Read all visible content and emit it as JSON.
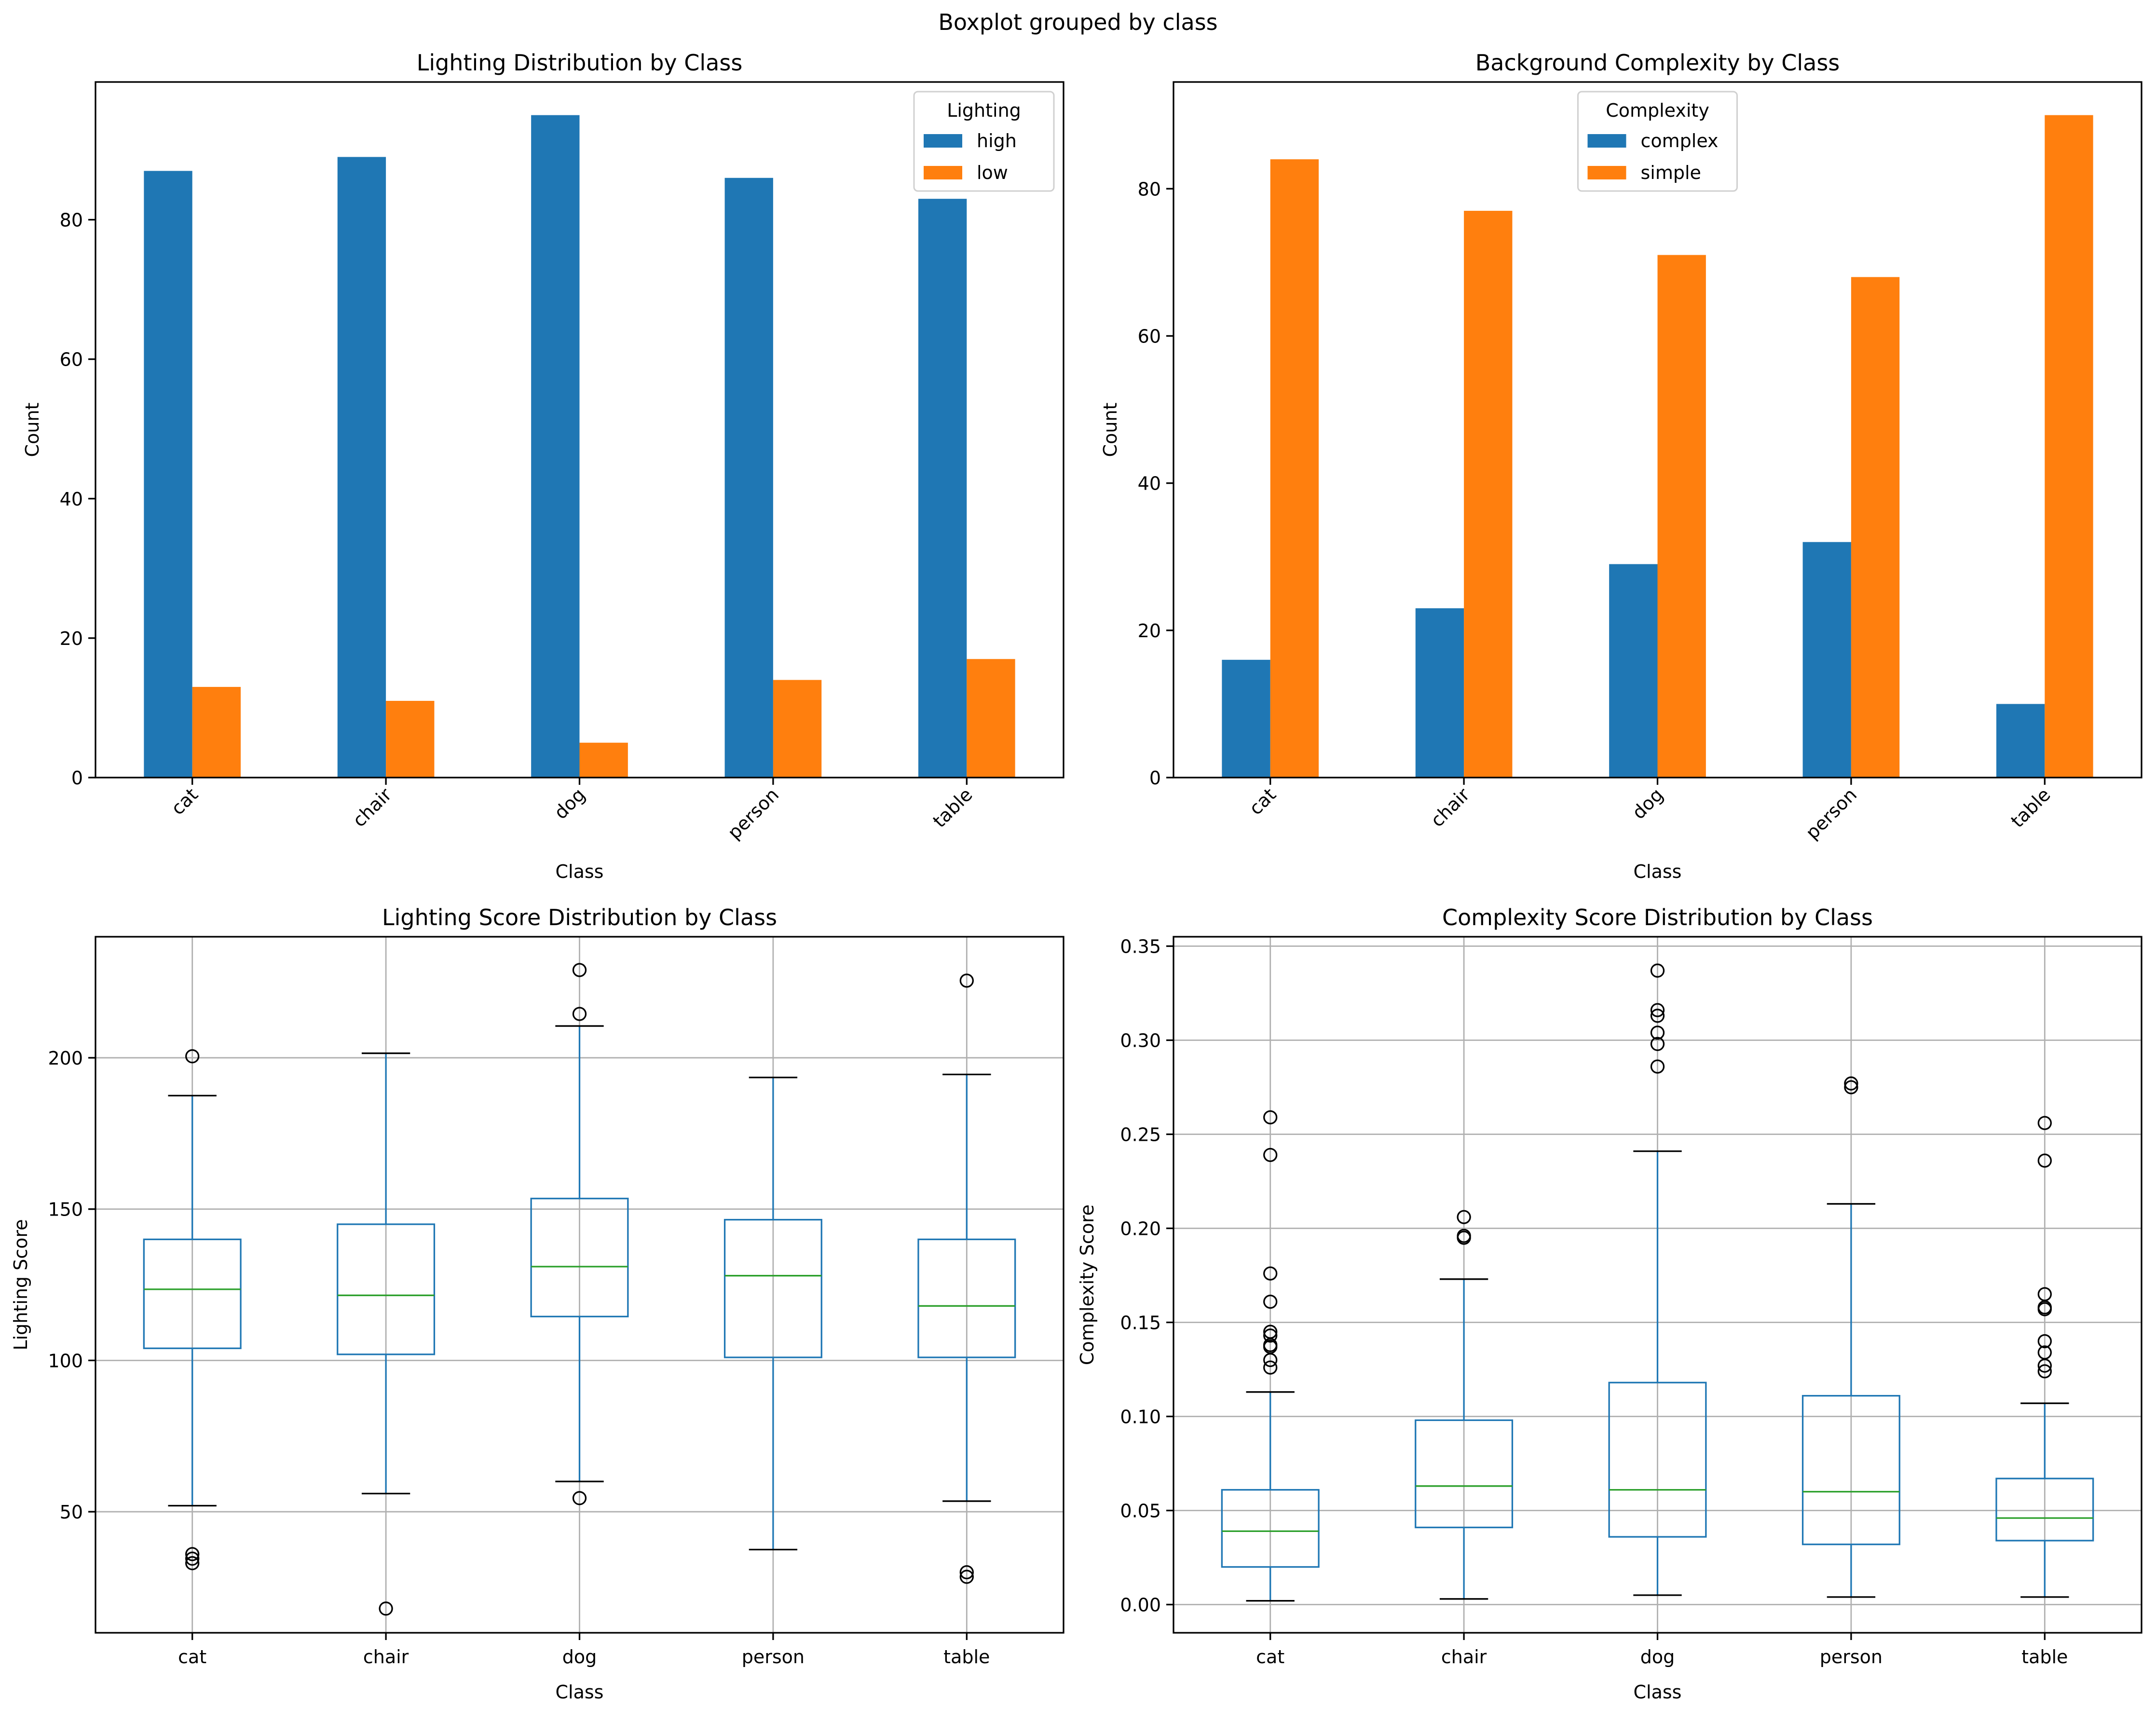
{
  "suptitle": "Boxplot grouped by class",
  "colors": {
    "blue": "#1f77b4",
    "orange": "#ff7f0e",
    "median": "#2ca02c",
    "grid": "#b0b0b0",
    "axis": "#000000"
  },
  "chart_data": [
    {
      "type": "bar",
      "title": "Lighting Distribution by Class",
      "xlabel": "Class",
      "ylabel": "Count",
      "categories": [
        "cat",
        "chair",
        "dog",
        "person",
        "table"
      ],
      "ylim": [
        0,
        99.75
      ],
      "yticks": [
        0,
        20,
        40,
        60,
        80
      ],
      "legend_title": "Lighting",
      "legend_position": "top-right",
      "grid": false,
      "rotate_xticks": true,
      "series": [
        {
          "name": "high",
          "color": "#1f77b4",
          "values": [
            87,
            89,
            95,
            86,
            83
          ]
        },
        {
          "name": "low",
          "color": "#ff7f0e",
          "values": [
            13,
            11,
            5,
            14,
            17
          ]
        }
      ]
    },
    {
      "type": "bar",
      "title": "Background Complexity by Class",
      "xlabel": "Class",
      "ylabel": "Count",
      "categories": [
        "cat",
        "chair",
        "dog",
        "person",
        "table"
      ],
      "ylim": [
        0,
        94.5
      ],
      "yticks": [
        0,
        20,
        40,
        60,
        80
      ],
      "legend_title": "Complexity",
      "legend_position": "top-center",
      "grid": false,
      "rotate_xticks": true,
      "series": [
        {
          "name": "complex",
          "color": "#1f77b4",
          "values": [
            16,
            23,
            29,
            32,
            10
          ]
        },
        {
          "name": "simple",
          "color": "#ff7f0e",
          "values": [
            84,
            77,
            71,
            68,
            90
          ]
        }
      ]
    },
    {
      "type": "box",
      "title": "Lighting Score Distribution by Class",
      "xlabel": "Class",
      "ylabel": "Lighting Score",
      "categories": [
        "cat",
        "chair",
        "dog",
        "person",
        "table"
      ],
      "ylim": [
        10,
        240
      ],
      "yticks": [
        50,
        100,
        150,
        200
      ],
      "grid": true,
      "boxes": [
        {
          "whislo": 52,
          "q1": 104,
          "med": 123.5,
          "q3": 140,
          "whishi": 187.5,
          "fliers": [
            200.5,
            36,
            34.5,
            33
          ]
        },
        {
          "whislo": 56,
          "q1": 102,
          "med": 121.5,
          "q3": 145,
          "whishi": 201.5,
          "fliers": [
            18
          ]
        },
        {
          "whislo": 60,
          "q1": 114.5,
          "med": 131,
          "q3": 153.5,
          "whishi": 210.5,
          "fliers": [
            229,
            214.5,
            54.5
          ]
        },
        {
          "whislo": 37.5,
          "q1": 101,
          "med": 128,
          "q3": 146.5,
          "whishi": 193.5,
          "fliers": []
        },
        {
          "whislo": 53.5,
          "q1": 101,
          "med": 118,
          "q3": 140,
          "whishi": 194.5,
          "fliers": [
            225.5,
            30,
            28.5
          ]
        }
      ]
    },
    {
      "type": "box",
      "title": "Complexity Score Distribution by Class",
      "xlabel": "Class",
      "ylabel": "Complexity Score",
      "categories": [
        "cat",
        "chair",
        "dog",
        "person",
        "table"
      ],
      "ylim": [
        -0.015,
        0.355
      ],
      "yticks": [
        0.0,
        0.05,
        0.1,
        0.15,
        0.2,
        0.25,
        0.3,
        0.35
      ],
      "ytick_labels": [
        "0.00",
        "0.05",
        "0.10",
        "0.15",
        "0.20",
        "0.25",
        "0.30",
        "0.35"
      ],
      "grid": true,
      "boxes": [
        {
          "whislo": 0.002,
          "q1": 0.02,
          "med": 0.039,
          "q3": 0.061,
          "whishi": 0.113,
          "fliers": [
            0.259,
            0.239,
            0.176,
            0.161,
            0.145,
            0.143,
            0.138,
            0.137,
            0.13,
            0.126
          ]
        },
        {
          "whislo": 0.003,
          "q1": 0.041,
          "med": 0.063,
          "q3": 0.098,
          "whishi": 0.173,
          "fliers": [
            0.206,
            0.196,
            0.195
          ]
        },
        {
          "whislo": 0.005,
          "q1": 0.036,
          "med": 0.061,
          "q3": 0.118,
          "whishi": 0.241,
          "fliers": [
            0.337,
            0.316,
            0.313,
            0.304,
            0.298,
            0.286
          ]
        },
        {
          "whislo": 0.004,
          "q1": 0.032,
          "med": 0.06,
          "q3": 0.111,
          "whishi": 0.213,
          "fliers": [
            0.277,
            0.275
          ]
        },
        {
          "whislo": 0.004,
          "q1": 0.034,
          "med": 0.046,
          "q3": 0.067,
          "whishi": 0.107,
          "fliers": [
            0.256,
            0.236,
            0.165,
            0.158,
            0.157,
            0.14,
            0.134,
            0.127,
            0.124
          ]
        }
      ]
    }
  ]
}
